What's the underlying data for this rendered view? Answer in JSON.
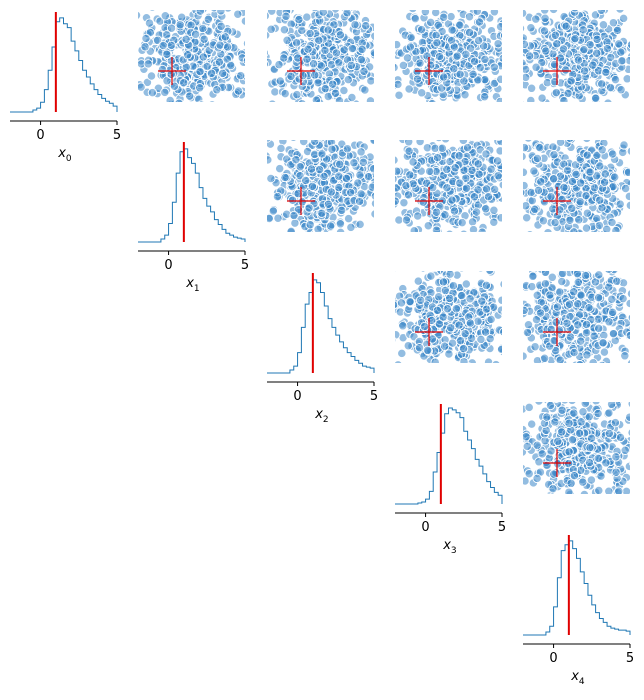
{
  "chart_data": {
    "type": "pairplot",
    "variables": [
      "x",
      "x",
      "x",
      "x",
      "x"
    ],
    "subscripts": [
      "0",
      "1",
      "2",
      "3",
      "4"
    ],
    "xlim": [
      -2,
      5
    ],
    "ticks": [
      0,
      5
    ],
    "tick_labels": [
      "0",
      "5"
    ],
    "truth": [
      1,
      1,
      1,
      1,
      1
    ],
    "colors": {
      "hist": "#1f77b4",
      "truth": "#e00000",
      "scatter_fill": "#3a86c8",
      "scatter_edge": "#ffffff"
    },
    "histograms": [
      {
        "name": "x0",
        "bins": [
          -0.5,
          -0.25,
          0,
          0.25,
          0.5,
          0.75,
          1,
          1.25,
          1.5,
          1.75,
          2,
          2.25,
          2.5,
          2.75,
          3,
          3.25,
          3.5,
          3.75,
          4,
          4.25,
          4.5,
          4.75,
          5
        ],
        "counts": [
          0.01,
          0.03,
          0.09,
          0.22,
          0.42,
          0.66,
          0.92,
          0.96,
          0.9,
          0.86,
          0.72,
          0.62,
          0.52,
          0.42,
          0.35,
          0.28,
          0.22,
          0.17,
          0.13,
          0.1,
          0.08,
          0.05
        ]
      },
      {
        "name": "x1",
        "bins": [
          -0.5,
          -0.25,
          0,
          0.25,
          0.5,
          0.75,
          1,
          1.25,
          1.5,
          1.75,
          2,
          2.25,
          2.5,
          2.75,
          3,
          3.25,
          3.5,
          3.75,
          4,
          4.25,
          4.5,
          4.75,
          5
        ],
        "counts": [
          0.02,
          0.06,
          0.18,
          0.4,
          0.7,
          0.92,
          0.95,
          0.86,
          0.8,
          0.7,
          0.55,
          0.44,
          0.36,
          0.3,
          0.22,
          0.17,
          0.12,
          0.08,
          0.06,
          0.04,
          0.03,
          0.02
        ]
      },
      {
        "name": "x2",
        "bins": [
          -0.5,
          -0.25,
          0,
          0.25,
          0.5,
          0.75,
          1,
          1.25,
          1.5,
          1.75,
          2,
          2.25,
          2.5,
          2.75,
          3,
          3.25,
          3.5,
          3.75,
          4,
          4.25,
          4.5,
          4.75,
          5
        ],
        "counts": [
          0.02,
          0.06,
          0.2,
          0.46,
          0.7,
          0.82,
          0.95,
          0.92,
          0.82,
          0.68,
          0.55,
          0.46,
          0.38,
          0.31,
          0.25,
          0.2,
          0.16,
          0.12,
          0.09,
          0.06,
          0.05,
          0.04
        ]
      },
      {
        "name": "x3",
        "bins": [
          -0.5,
          -0.25,
          0,
          0.25,
          0.5,
          0.75,
          1,
          1.25,
          1.5,
          1.75,
          2,
          2.25,
          2.5,
          2.75,
          3,
          3.25,
          3.5,
          3.75,
          4,
          4.25,
          4.5,
          4.75,
          5
        ],
        "counts": [
          0.0,
          0.01,
          0.04,
          0.12,
          0.32,
          0.52,
          0.72,
          0.92,
          0.98,
          0.96,
          0.93,
          0.88,
          0.74,
          0.65,
          0.56,
          0.45,
          0.38,
          0.3,
          0.22,
          0.16,
          0.11,
          0.08
        ]
      },
      {
        "name": "x4",
        "bins": [
          -0.5,
          -0.25,
          0,
          0.25,
          0.5,
          0.75,
          1,
          1.25,
          1.5,
          1.75,
          2,
          2.25,
          2.5,
          2.75,
          3,
          3.25,
          3.5,
          3.75,
          4,
          4.25,
          4.5,
          4.75,
          5
        ],
        "counts": [
          0.02,
          0.08,
          0.28,
          0.58,
          0.86,
          0.92,
          0.96,
          0.88,
          0.78,
          0.64,
          0.52,
          0.4,
          0.3,
          0.22,
          0.16,
          0.12,
          0.08,
          0.06,
          0.05,
          0.04,
          0.04,
          0.03
        ]
      }
    ],
    "scatter": {
      "points_per_panel": 450,
      "mean": [
        1.5,
        1.5
      ],
      "sd": [
        1.2,
        1.2
      ],
      "clip": [
        -2,
        5
      ]
    }
  }
}
